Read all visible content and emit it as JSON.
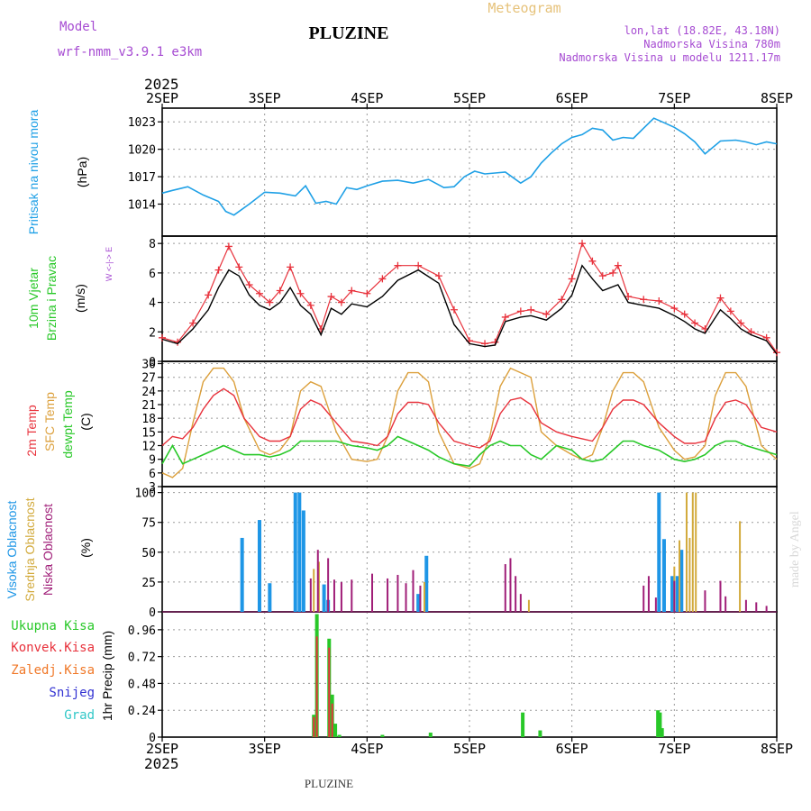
{
  "header": {
    "model_label": "Model",
    "model_name": "wrf-nmm_v3.9.1  e3km",
    "station": "PLUZINE",
    "chart_kind": "Meteogram",
    "lonlat": "lon,lat (18.82E, 43.18N)",
    "elevation": "Nadmorska Visina 780m",
    "model_elevation": "Nadmorska Visina u modelu 1211.17m",
    "watermark": "made by Angel"
  },
  "time_axis": {
    "year": "2025",
    "labels": [
      "2SEP",
      "3SEP",
      "4SEP",
      "5SEP",
      "6SEP",
      "7SEP",
      "8SEP"
    ]
  },
  "footer": {
    "station": "PLUZINE"
  },
  "colors": {
    "pressure": "#1ea0e6",
    "wind": "#000000",
    "gust": "#e8323c",
    "temp2m": "#e8323c",
    "sfc": "#dca03c",
    "dewpt": "#28c828",
    "high_cloud": "#1e96e6",
    "mid_cloud": "#d2aa3c",
    "low_cloud": "#a01e78",
    "precip_total": "#28c828",
    "precip_conv": "#e8323c",
    "freezing": "#f07828",
    "snow": "#3232d2",
    "hail": "#32c8c8"
  },
  "chart_data": [
    {
      "type": "line",
      "name": "pressure",
      "ylabels": [
        "Pritisak na nivou mora",
        "(hPa)"
      ],
      "yticks": [
        "1014",
        "1017",
        "1020",
        "1023"
      ],
      "ylim": [
        1010.5,
        1024.5
      ],
      "series": [
        {
          "name": "MSLP",
          "x": [
            0,
            0.1,
            0.25,
            0.4,
            0.55,
            0.62,
            0.7,
            0.85,
            1.0,
            1.15,
            1.3,
            1.4,
            1.5,
            1.6,
            1.7,
            1.8,
            1.9,
            2.0,
            2.15,
            2.3,
            2.45,
            2.6,
            2.75,
            2.85,
            2.95,
            3.05,
            3.15,
            3.25,
            3.35,
            3.5,
            3.6,
            3.7,
            3.8,
            3.9,
            4.0,
            4.1,
            4.2,
            4.3,
            4.4,
            4.5,
            4.6,
            4.7,
            4.8,
            4.9,
            5.0,
            5.1,
            5.2,
            5.3,
            5.45,
            5.6,
            5.7,
            5.8,
            5.9,
            6.0
          ],
          "values": [
            1015.2,
            1015.5,
            1015.9,
            1015.0,
            1014.3,
            1013.2,
            1012.8,
            1014.0,
            1015.3,
            1015.2,
            1014.9,
            1016.0,
            1014.1,
            1014.3,
            1014.0,
            1015.8,
            1015.6,
            1016.0,
            1016.5,
            1016.6,
            1016.3,
            1016.7,
            1015.8,
            1015.9,
            1017.0,
            1017.6,
            1017.3,
            1017.4,
            1017.5,
            1016.3,
            1017.0,
            1018.5,
            1019.6,
            1020.6,
            1021.3,
            1021.6,
            1022.3,
            1022.1,
            1021.0,
            1021.3,
            1021.2,
            1022.3,
            1023.4,
            1022.9,
            1022.4,
            1021.7,
            1020.8,
            1019.5,
            1020.9,
            1021.0,
            1020.8,
            1020.5,
            1020.8,
            1020.6
          ]
        }
      ]
    },
    {
      "type": "line",
      "name": "wind",
      "ylabels": [
        "10m Vjetar",
        "Brzina i Pravac",
        "(m/s)"
      ],
      "compass": "W  <-|->  E",
      "yticks": [
        "0",
        "2",
        "4",
        "6",
        "8"
      ],
      "ylim": [
        0,
        8.5
      ],
      "series": [
        {
          "name": "speed",
          "x": [
            0,
            0.15,
            0.3,
            0.45,
            0.55,
            0.65,
            0.75,
            0.85,
            0.95,
            1.05,
            1.15,
            1.25,
            1.35,
            1.45,
            1.55,
            1.65,
            1.75,
            1.85,
            2.0,
            2.15,
            2.3,
            2.5,
            2.7,
            2.85,
            3.0,
            3.15,
            3.25,
            3.35,
            3.5,
            3.6,
            3.75,
            3.9,
            4.0,
            4.1,
            4.2,
            4.3,
            4.45,
            4.55,
            4.7,
            4.85,
            5.0,
            5.1,
            5.2,
            5.3,
            5.45,
            5.55,
            5.65,
            5.75,
            5.9,
            6.0
          ],
          "values": [
            1.5,
            1.2,
            2.2,
            3.5,
            5.0,
            6.2,
            5.8,
            4.5,
            3.8,
            3.5,
            4.0,
            5.0,
            3.8,
            3.2,
            1.8,
            3.6,
            3.2,
            3.9,
            3.7,
            4.4,
            5.5,
            6.2,
            5.3,
            2.5,
            1.2,
            1.0,
            1.1,
            2.7,
            3.0,
            3.1,
            2.8,
            3.6,
            4.5,
            6.5,
            5.6,
            4.8,
            5.2,
            4.0,
            3.8,
            3.6,
            3.1,
            2.7,
            2.2,
            1.9,
            3.5,
            2.9,
            2.2,
            1.8,
            1.4,
            0.5
          ]
        },
        {
          "name": "gust",
          "x": [
            0,
            0.15,
            0.3,
            0.45,
            0.55,
            0.65,
            0.75,
            0.85,
            0.95,
            1.05,
            1.15,
            1.25,
            1.35,
            1.45,
            1.55,
            1.65,
            1.75,
            1.85,
            2.0,
            2.15,
            2.3,
            2.5,
            2.7,
            2.85,
            3.0,
            3.15,
            3.25,
            3.35,
            3.5,
            3.6,
            3.75,
            3.9,
            4.0,
            4.1,
            4.2,
            4.3,
            4.4,
            4.45,
            4.55,
            4.7,
            4.85,
            5.0,
            5.1,
            5.2,
            5.3,
            5.45,
            5.55,
            5.65,
            5.75,
            5.9,
            6.0
          ],
          "values": [
            1.6,
            1.3,
            2.6,
            4.5,
            6.2,
            7.8,
            6.4,
            5.2,
            4.6,
            4.0,
            4.8,
            6.4,
            4.6,
            3.8,
            2.2,
            4.4,
            4.0,
            4.8,
            4.6,
            5.6,
            6.5,
            6.5,
            5.8,
            3.5,
            1.4,
            1.2,
            1.3,
            3.0,
            3.4,
            3.5,
            3.2,
            4.2,
            5.6,
            8.0,
            6.8,
            5.8,
            6.0,
            6.5,
            4.4,
            4.2,
            4.1,
            3.6,
            3.2,
            2.6,
            2.2,
            4.3,
            3.4,
            2.6,
            2.0,
            1.6,
            0.6
          ]
        }
      ]
    },
    {
      "type": "line",
      "name": "temperature",
      "ylabels": [
        "2m Temp",
        "SFC Temp",
        "dewpt Temp",
        "(C)"
      ],
      "yticks": [
        "3",
        "6",
        "9",
        "12",
        "15",
        "18",
        "21",
        "24",
        "27",
        "30"
      ],
      "ylim": [
        3,
        30.5
      ],
      "series": [
        {
          "name": "2m Temp",
          "x": [
            0,
            0.1,
            0.2,
            0.3,
            0.4,
            0.5,
            0.6,
            0.7,
            0.8,
            0.95,
            1.05,
            1.15,
            1.25,
            1.35,
            1.45,
            1.55,
            1.7,
            1.85,
            2.0,
            2.1,
            2.2,
            2.3,
            2.4,
            2.5,
            2.6,
            2.7,
            2.85,
            3.0,
            3.1,
            3.2,
            3.3,
            3.4,
            3.5,
            3.6,
            3.7,
            3.85,
            4.0,
            4.1,
            4.2,
            4.3,
            4.4,
            4.5,
            4.6,
            4.7,
            4.85,
            5.0,
            5.1,
            5.2,
            5.3,
            5.4,
            5.5,
            5.6,
            5.7,
            5.85,
            6.0
          ],
          "values": [
            12,
            14,
            13.5,
            16,
            20,
            23,
            24.5,
            23,
            18,
            14,
            13,
            13,
            14,
            20,
            22,
            21,
            17,
            13,
            12.5,
            12,
            14,
            19,
            21.5,
            21.5,
            21,
            17,
            13,
            12,
            11.5,
            13,
            19,
            22,
            22.5,
            21,
            17,
            15,
            14,
            13.5,
            13,
            16,
            20,
            22,
            22,
            21,
            17,
            14,
            12.5,
            12.5,
            13,
            18,
            21.5,
            22,
            21,
            16,
            15
          ]
        },
        {
          "name": "SFC Temp",
          "x": [
            0,
            0.1,
            0.2,
            0.3,
            0.4,
            0.5,
            0.6,
            0.7,
            0.8,
            0.95,
            1.05,
            1.15,
            1.25,
            1.35,
            1.45,
            1.55,
            1.7,
            1.85,
            2.0,
            2.1,
            2.2,
            2.3,
            2.4,
            2.5,
            2.6,
            2.7,
            2.85,
            3.0,
            3.1,
            3.2,
            3.3,
            3.4,
            3.5,
            3.6,
            3.7,
            3.85,
            4.0,
            4.1,
            4.2,
            4.3,
            4.4,
            4.5,
            4.6,
            4.7,
            4.85,
            5.0,
            5.1,
            5.2,
            5.3,
            5.4,
            5.5,
            5.6,
            5.7,
            5.85,
            6.0
          ],
          "values": [
            6,
            5,
            7,
            17,
            26,
            29,
            29,
            26,
            18,
            11,
            10,
            11,
            14,
            24,
            26,
            25,
            15,
            9,
            8.5,
            9,
            14,
            24,
            28,
            28,
            26,
            15,
            8,
            7,
            8,
            14,
            25,
            29,
            28,
            27,
            15,
            12,
            10,
            9,
            10,
            16,
            24,
            28,
            28,
            26,
            16,
            11,
            9,
            9.5,
            12,
            23,
            28,
            28,
            25,
            12,
            9
          ]
        },
        {
          "name": "dewpt Temp",
          "x": [
            0,
            0.1,
            0.2,
            0.3,
            0.4,
            0.5,
            0.6,
            0.7,
            0.8,
            0.95,
            1.05,
            1.15,
            1.25,
            1.35,
            1.45,
            1.55,
            1.7,
            1.85,
            2.0,
            2.1,
            2.2,
            2.3,
            2.4,
            2.5,
            2.6,
            2.7,
            2.85,
            3.0,
            3.1,
            3.2,
            3.3,
            3.4,
            3.5,
            3.6,
            3.7,
            3.85,
            4.0,
            4.1,
            4.2,
            4.3,
            4.4,
            4.5,
            4.6,
            4.7,
            4.85,
            5.0,
            5.1,
            5.2,
            5.3,
            5.4,
            5.5,
            5.6,
            5.7,
            5.85,
            6.0
          ],
          "values": [
            8,
            12,
            8,
            9,
            10,
            11,
            12,
            11,
            10,
            10,
            9.5,
            10,
            11,
            13,
            13,
            13,
            13,
            12,
            11.5,
            11,
            12,
            14,
            13,
            12,
            11,
            9.5,
            8,
            7.5,
            10,
            12,
            13,
            12,
            12,
            10,
            9,
            12,
            11,
            9,
            8.5,
            9,
            11,
            13,
            13,
            12,
            11,
            9,
            8.5,
            9,
            10,
            12,
            13,
            13,
            12,
            11,
            10
          ]
        }
      ]
    },
    {
      "type": "bar",
      "name": "cloud",
      "ylabels": [
        "Visoka Oblacnost",
        "Srednja Oblacnost",
        "Niska Oblacnost",
        "(%)"
      ],
      "yticks": [
        "0",
        "25",
        "50",
        "75",
        "100"
      ],
      "ylim": [
        0,
        105
      ],
      "series": [
        {
          "name": "Visoka",
          "x": [
            0.78,
            0.95,
            1.05,
            1.3,
            1.34,
            1.38,
            1.58,
            1.62,
            2.5,
            2.58,
            4.85,
            4.9,
            4.98,
            5.03,
            5.07
          ],
          "values": [
            62,
            77,
            24,
            100,
            100,
            85,
            23,
            10,
            15,
            47,
            100,
            61,
            30,
            30,
            52
          ]
        },
        {
          "name": "Srednja",
          "x": [
            1.48,
            1.53,
            2.56,
            3.58,
            5.0,
            5.05,
            5.12,
            5.15,
            5.18,
            5.21,
            5.64
          ],
          "values": [
            36,
            42,
            25,
            10,
            38,
            60,
            100,
            62,
            100,
            100,
            76
          ]
        },
        {
          "name": "Niska",
          "x": [
            1.45,
            1.52,
            1.62,
            1.68,
            1.75,
            1.85,
            2.05,
            2.2,
            2.3,
            2.38,
            2.45,
            2.52,
            3.35,
            3.4,
            3.45,
            3.5,
            4.7,
            4.75,
            4.82,
            5.0,
            5.3,
            5.45,
            5.5,
            5.7,
            5.8,
            5.9
          ],
          "values": [
            28,
            52,
            45,
            27,
            25,
            27,
            32,
            28,
            31,
            24,
            35,
            22,
            40,
            45,
            30,
            15,
            22,
            30,
            12,
            26,
            18,
            26,
            13,
            10,
            8,
            5
          ]
        }
      ]
    },
    {
      "type": "bar",
      "name": "precipitation",
      "ylabels": [
        "1hr Precip (mm)"
      ],
      "legend": [
        "Ukupna Kisa",
        "Konvek.Kisa",
        "Zaledj.Kisa",
        "Snijeg",
        "Grad"
      ],
      "yticks": [
        "0",
        "0.24",
        "0.48",
        "0.72",
        "0.96"
      ],
      "ylim": [
        0,
        1.12
      ],
      "series": [
        {
          "name": "Ukupna Kisa",
          "x": [
            1.48,
            1.51,
            1.63,
            1.66,
            1.69,
            1.73,
            2.15,
            2.62,
            3.52,
            3.69,
            4.84,
            4.86,
            4.88
          ],
          "values": [
            0.2,
            1.1,
            0.88,
            0.38,
            0.12,
            0.02,
            0.02,
            0.04,
            0.22,
            0.06,
            0.24,
            0.22,
            0.08
          ]
        },
        {
          "name": "Konvek.Kisa",
          "x": [
            1.48,
            1.51,
            1.63,
            1.66
          ],
          "values": [
            0.18,
            0.9,
            0.8,
            0.3
          ]
        }
      ]
    }
  ]
}
